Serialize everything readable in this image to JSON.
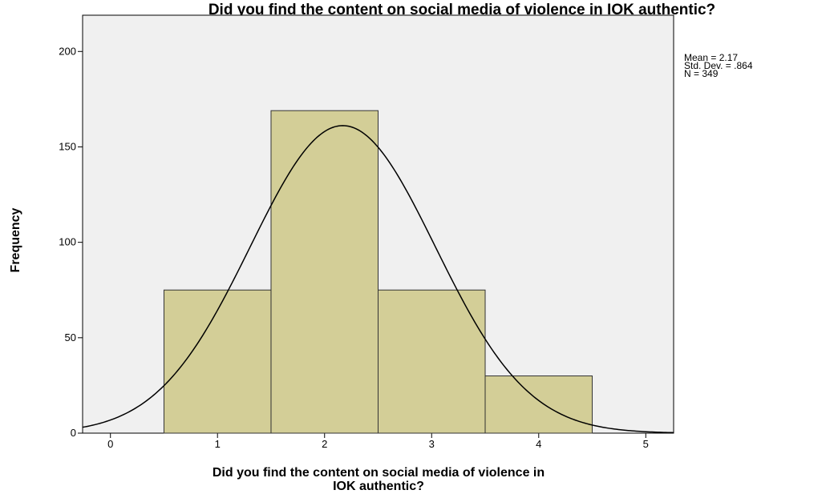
{
  "chart_data": {
    "type": "histogram",
    "title": "Did you find the content on social media of violence in IOK authentic?",
    "x_label": [
      "Did you find the content on social media of violence in",
      "IOK authentic?"
    ],
    "y_label": "Frequency",
    "bins": [
      0.5,
      1.5,
      2.5,
      3.5,
      4.5
    ],
    "counts": [
      75,
      169,
      75,
      30
    ],
    "color": "#d3ce97",
    "normal_curve": true,
    "stats": [
      {
        "text": "Mean = 2.17",
        "value": 2.17
      },
      {
        "text": "Std. Dev. = .864",
        "value": 0.864
      },
      {
        "text": "N = 349",
        "value": 349
      }
    ],
    "xlim": [
      -0.26,
      5.26
    ],
    "xticks": [
      0,
      1,
      2,
      3,
      4,
      5
    ],
    "ylim": [
      0,
      219
    ],
    "yticks": [
      0,
      50,
      100,
      150,
      200
    ]
  }
}
